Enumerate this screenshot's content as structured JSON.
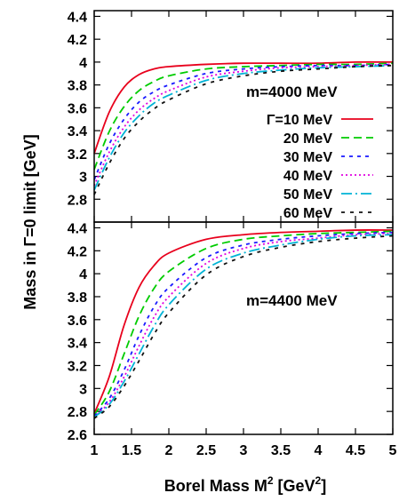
{
  "chart_data": [
    {
      "type": "line",
      "annotation": "m=4000 MeV",
      "xlim": [
        1,
        5
      ],
      "ylim": [
        2.6,
        4.45
      ],
      "y_ticks": [
        "2.8",
        "3",
        "3.2",
        "3.4",
        "3.6",
        "3.8",
        "4",
        "4.2",
        "4.4"
      ],
      "x": [
        1.0,
        1.2,
        1.4,
        1.6,
        1.8,
        2.0,
        2.5,
        3.0,
        3.5,
        4.0,
        4.5,
        5.0
      ],
      "series": [
        {
          "name": "Γ=10 MeV",
          "values": [
            3.2,
            3.56,
            3.78,
            3.89,
            3.94,
            3.96,
            3.98,
            3.99,
            3.99,
            3.99,
            4.0,
            4.0
          ]
        },
        {
          "name": "20 MeV",
          "values": [
            3.06,
            3.39,
            3.61,
            3.75,
            3.83,
            3.88,
            3.94,
            3.96,
            3.97,
            3.98,
            3.98,
            3.99
          ]
        },
        {
          "name": "30 MeV",
          "values": [
            2.97,
            3.28,
            3.5,
            3.65,
            3.74,
            3.8,
            3.9,
            3.94,
            3.96,
            3.97,
            3.97,
            3.98
          ]
        },
        {
          "name": "40 MeV",
          "values": [
            2.92,
            3.21,
            3.43,
            3.58,
            3.68,
            3.75,
            3.87,
            3.92,
            3.95,
            3.96,
            3.97,
            3.98
          ]
        },
        {
          "name": "50 MeV",
          "values": [
            2.88,
            3.16,
            3.38,
            3.53,
            3.64,
            3.71,
            3.84,
            3.9,
            3.93,
            3.95,
            3.96,
            3.97
          ]
        },
        {
          "name": "60 MeV",
          "values": [
            2.84,
            3.11,
            3.33,
            3.48,
            3.59,
            3.67,
            3.81,
            3.88,
            3.92,
            3.94,
            3.96,
            3.97
          ]
        }
      ]
    },
    {
      "type": "line",
      "annotation": "m=4400 MeV",
      "xlim": [
        1,
        5
      ],
      "ylim": [
        2.6,
        4.45
      ],
      "x_ticks": [
        "1",
        "1.5",
        "2",
        "2.5",
        "3",
        "3.5",
        "4",
        "4.5",
        "5"
      ],
      "y_ticks": [
        "2.6",
        "2.8",
        "3",
        "3.2",
        "3.4",
        "3.6",
        "3.8",
        "4",
        "4.2",
        "4.4"
      ],
      "x": [
        1.0,
        1.2,
        1.4,
        1.6,
        1.8,
        2.0,
        2.5,
        3.0,
        3.5,
        4.0,
        4.5,
        5.0
      ],
      "series": [
        {
          "name": "Γ=10 MeV",
          "values": [
            2.78,
            3.1,
            3.55,
            3.88,
            4.07,
            4.18,
            4.3,
            4.34,
            4.36,
            4.37,
            4.38,
            4.38
          ]
        },
        {
          "name": "20 MeV",
          "values": [
            2.77,
            2.97,
            3.3,
            3.63,
            3.87,
            4.02,
            4.22,
            4.3,
            4.33,
            4.35,
            4.36,
            4.37
          ]
        },
        {
          "name": "30 MeV",
          "values": [
            2.76,
            2.91,
            3.16,
            3.46,
            3.71,
            3.88,
            4.14,
            4.25,
            4.3,
            4.33,
            4.35,
            4.36
          ]
        },
        {
          "name": "40 MeV",
          "values": [
            2.75,
            2.88,
            3.1,
            3.37,
            3.62,
            3.8,
            4.09,
            4.22,
            4.28,
            4.31,
            4.34,
            4.35
          ]
        },
        {
          "name": "50 MeV",
          "values": [
            2.75,
            2.86,
            3.06,
            3.3,
            3.54,
            3.73,
            4.04,
            4.18,
            4.25,
            4.3,
            4.33,
            4.34
          ]
        },
        {
          "name": "60 MeV",
          "values": [
            2.74,
            2.84,
            3.02,
            3.24,
            3.47,
            3.66,
            3.99,
            4.15,
            4.23,
            4.28,
            4.31,
            4.33
          ]
        }
      ]
    }
  ],
  "axes": {
    "xlabel_main": "Borel Mass M",
    "xlabel_sup": "2",
    "xlabel_unit_open": " [GeV",
    "xlabel_unit_sup": "2",
    "xlabel_close": "]",
    "ylabel": "Mass in Γ=0 limit [GeV]"
  },
  "series_styles": [
    {
      "color": "#e8001c",
      "dash": "none"
    },
    {
      "color": "#00cc00",
      "dash": "9,5"
    },
    {
      "color": "#1a1aff",
      "dash": "4,5"
    },
    {
      "color": "#e000e0",
      "dash": "2,3"
    },
    {
      "color": "#00b3d6",
      "dash": "12,4,2,4"
    },
    {
      "color": "#111111",
      "dash": "4,6"
    }
  ]
}
